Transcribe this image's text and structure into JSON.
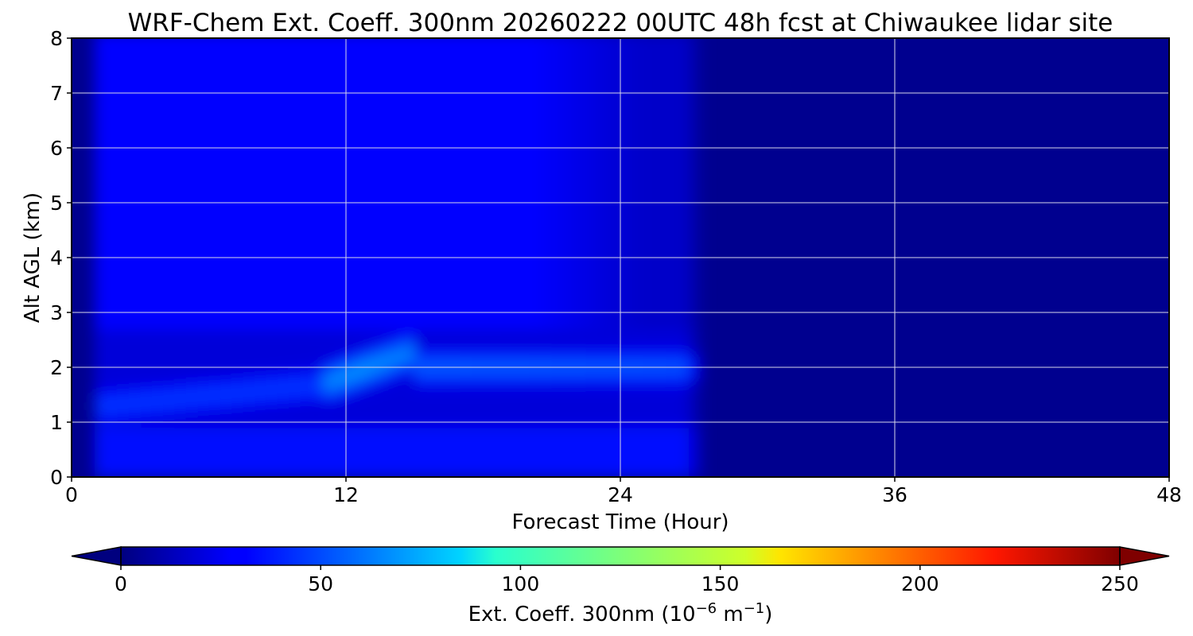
{
  "chart_data": {
    "type": "heatmap",
    "title": "WRF-Chem Ext. Coeff. 300nm  20260222 00UTC 48h fcst at Chiwaukee lidar site",
    "xlabel": "Forecast Time (Hour)",
    "ylabel": "Alt AGL (km)",
    "x_ticks": [
      "0",
      "12",
      "24",
      "36",
      "48"
    ],
    "y_ticks": [
      "0",
      "1",
      "2",
      "3",
      "4",
      "5",
      "6",
      "7",
      "8"
    ],
    "xlim": [
      0,
      48
    ],
    "ylim": [
      0,
      8
    ],
    "grid": true,
    "colormap": "jet",
    "colorbar": {
      "label_main": "Ext. Coeff. 300nm  (10",
      "label_exp1": "−6",
      "label_mid": " m",
      "label_exp2": "−1",
      "label_end": ")",
      "ticks": [
        "0",
        "50",
        "100",
        "150",
        "200",
        "250"
      ],
      "range": [
        0,
        250
      ],
      "extend": "both",
      "orientation": "horizontal"
    },
    "background_value": 0,
    "x_extent_of_data": [
      0,
      27.5
    ],
    "features": [
      {
        "kind": "aerosol layer",
        "time": [
          1,
          11
        ],
        "alt": 1.25,
        "value": 45
      },
      {
        "kind": "aerosol layer",
        "time": [
          11,
          15
        ],
        "alt": 1.8,
        "value": 68
      },
      {
        "kind": "aerosol layer",
        "time": [
          15,
          27.5
        ],
        "alt": 2.0,
        "value": 52
      },
      {
        "kind": "diffuse aerosol",
        "time": [
          1,
          20
        ],
        "alt": [
          3,
          7
        ],
        "value": 30
      }
    ]
  }
}
